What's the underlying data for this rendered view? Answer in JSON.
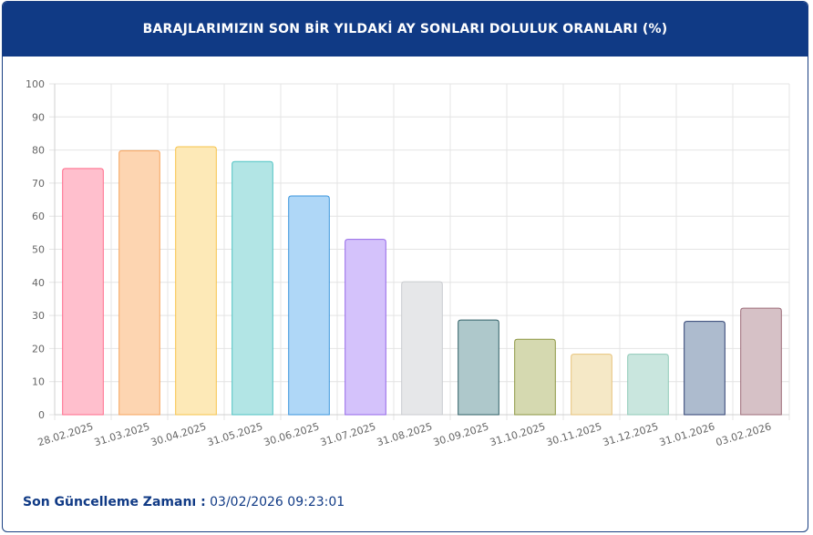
{
  "header": {
    "title": "BARAJLARIMIZIN SON BİR YILDAKİ AY SONLARI DOLULUK ORANLARI (%)"
  },
  "footer": {
    "label": "Son Güncelleme Zamanı :",
    "value": "03/02/2026 09:23:01"
  },
  "chart_data": {
    "type": "bar",
    "title": "",
    "xlabel": "",
    "ylabel": "",
    "ylim": [
      0,
      100
    ],
    "yticks": [
      0,
      10,
      20,
      30,
      40,
      50,
      60,
      70,
      80,
      90,
      100
    ],
    "grid": true,
    "legend": "none",
    "categories": [
      "28.02.2025",
      "31.03.2025",
      "30.04.2025",
      "31.05.2025",
      "30.06.2025",
      "31.07.2025",
      "31.08.2025",
      "30.09.2025",
      "31.10.2025",
      "30.11.2025",
      "31.12.2025",
      "31.01.2026",
      "03.02.2026"
    ],
    "values": [
      74.4,
      79.8,
      81.0,
      76.5,
      66.1,
      53.0,
      40.2,
      28.6,
      22.8,
      18.3,
      18.3,
      28.2,
      32.2
    ],
    "fill_colors": [
      "#ffbfcd",
      "#fdd5b1",
      "#fde9b7",
      "#b2e5e5",
      "#afd7f7",
      "#d4c2fb",
      "#e6e7e9",
      "#aec8cb",
      "#d5d9b0",
      "#f5e8c6",
      "#c9e6de",
      "#adbbce",
      "#d6c1c6"
    ],
    "stroke_colors": [
      "#ff6b8b",
      "#f7a35c",
      "#f6c34a",
      "#4fc3c3",
      "#3a96dd",
      "#9467e8",
      "#c9cbcf",
      "#2f5f66",
      "#8b9540",
      "#e8c27a",
      "#8fcab8",
      "#2c3e70",
      "#9c6b78"
    ]
  }
}
